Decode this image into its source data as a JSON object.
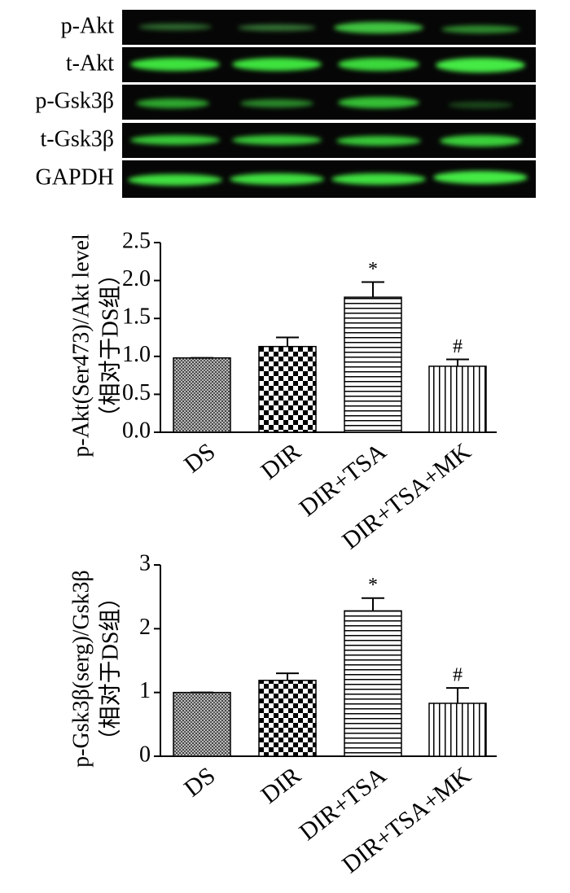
{
  "blot": {
    "labels": [
      "p-Akt",
      "t-Akt",
      "p-Gsk3β",
      "t-Gsk3β",
      "GAPDH"
    ]
  },
  "chart_data": [
    {
      "type": "bar",
      "ylabel": [
        "p-Akt(Ser473)/Akt level",
        "（相对于DS组）"
      ],
      "categories": [
        "DS",
        "DIR",
        "DIR+TSA",
        "DIR+TSA+MK"
      ],
      "values": [
        0.98,
        1.13,
        1.78,
        0.87
      ],
      "errors": [
        0,
        0.12,
        0.2,
        0.09
      ],
      "annotations": [
        null,
        null,
        "*",
        "#"
      ],
      "patterns": [
        "crosshatch",
        "checker",
        "horizontal",
        "vertical"
      ],
      "ylim": [
        0,
        2.5
      ],
      "yticks": [
        {
          "value": 0,
          "label": "0.0"
        },
        0.5,
        {
          "value": 1,
          "label": "1.0"
        },
        1.5,
        {
          "value": 2,
          "label": "2.0"
        },
        2.5
      ]
    },
    {
      "type": "bar",
      "ylabel": [
        "p-Gsk3β(serg)/Gsk3β",
        "（相对于DS组）"
      ],
      "categories": [
        "DS",
        "DIR",
        "DIR+TSA",
        "DIR+TSA+MK"
      ],
      "values": [
        1.0,
        1.19,
        2.28,
        0.83
      ],
      "errors": [
        0,
        0.11,
        0.2,
        0.24
      ],
      "annotations": [
        null,
        null,
        "*",
        "#"
      ],
      "patterns": [
        "crosshatch",
        "checker",
        "horizontal",
        "vertical"
      ],
      "ylim": [
        0,
        3
      ],
      "yticks": [
        0,
        1,
        2,
        3
      ]
    }
  ]
}
